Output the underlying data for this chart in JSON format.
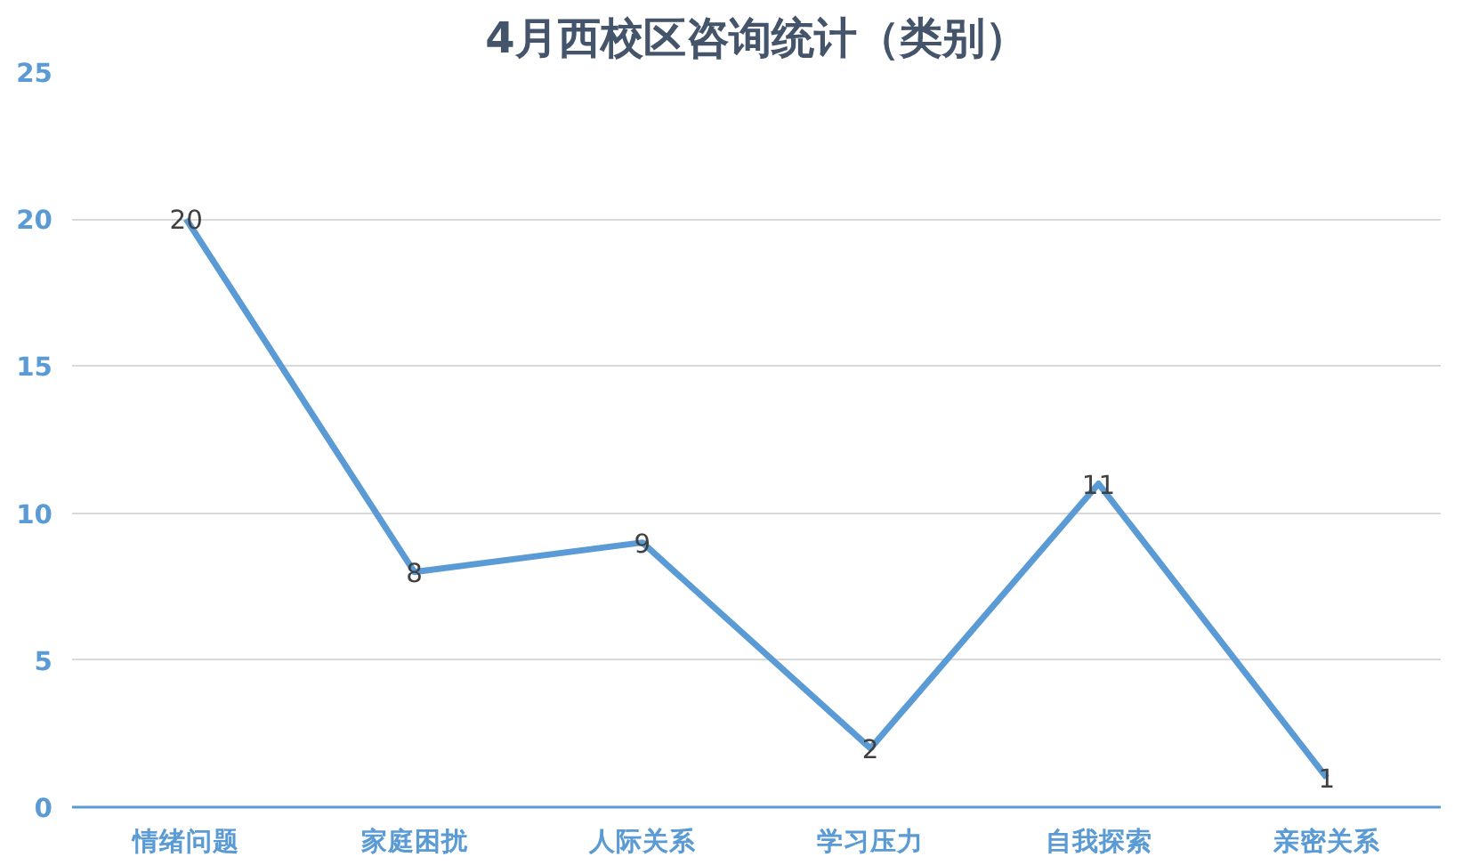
{
  "chart_data": {
    "type": "line",
    "title": "4月西校区咨询统计（类别）",
    "categories": [
      "情绪问题",
      "家庭困扰",
      "人际关系",
      "学习压力",
      "自我探索",
      "亲密关系"
    ],
    "series": [
      {
        "color": "#5b9bd5",
        "values": [
          20,
          8,
          9,
          2,
          11,
          1
        ]
      }
    ],
    "ylim": [
      0,
      25
    ],
    "yticks": [
      0,
      5,
      10,
      15,
      20,
      25
    ],
    "grid": "y",
    "data_labels": true,
    "line_style": "solid"
  }
}
